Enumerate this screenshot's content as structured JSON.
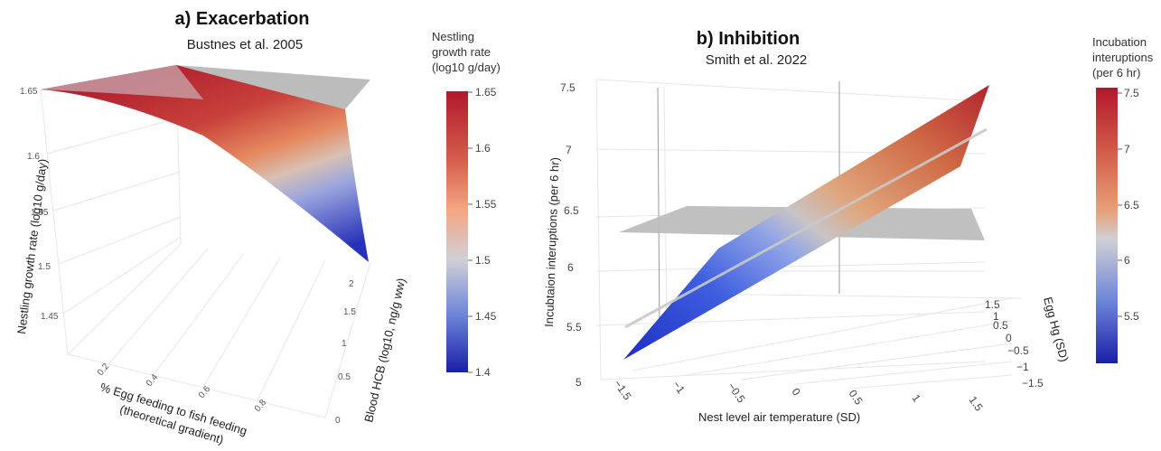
{
  "chart_data": [
    {
      "type": "surface3d",
      "title": "a) Exacerbation",
      "subtitle": "Bustnes et al. 2005",
      "xlabel": "% Egg feeding to fish feeding\n(theoretical gradient)",
      "ylabel": "Blood HCB (log10, ng/g ww)",
      "zlabel": "Nestling growth rate (log10 g/day)",
      "x_ticks": [
        "0.2",
        "0.4",
        "0.6",
        "0.8"
      ],
      "y_ticks": [
        "0",
        "0.5",
        "1",
        "1.5",
        "2"
      ],
      "z_ticks": [
        "1.45",
        "1.5",
        "1.55",
        "1.6",
        "1.65"
      ],
      "xlim": [
        0,
        1
      ],
      "ylim": [
        0,
        2.2
      ],
      "zlim": [
        1.4,
        1.65
      ],
      "surface_corners": [
        {
          "x": 0,
          "y": 0,
          "z": 1.65
        },
        {
          "x": 1,
          "y": 0,
          "z": 1.65
        },
        {
          "x": 0,
          "y": 2.2,
          "z": 1.65
        },
        {
          "x": 1,
          "y": 2.2,
          "z": 1.42
        }
      ],
      "reference_plane_z": 1.65,
      "colorbar": {
        "title": [
          "Nestling",
          "growth rate",
          "(log10 g/day)"
        ],
        "ticks": [
          "1.65",
          "1.6",
          "1.55",
          "1.5",
          "1.45",
          "1.4"
        ],
        "range": [
          1.4,
          1.65
        ]
      }
    },
    {
      "type": "surface3d",
      "title": "b) Inhibition",
      "subtitle": "Smith et al. 2022",
      "xlabel": "Nest level air temperature (SD)",
      "ylabel": "Egg Hg (SD)",
      "zlabel": "Incubtaion interuptions (per 6 hr)",
      "x_ticks": [
        "−1.5",
        "−1",
        "−0.5",
        "0",
        "0.5",
        "1",
        "1.5"
      ],
      "y_ticks": [
        "1.5",
        "1",
        "0.5",
        "0",
        "−0.5",
        "−1",
        "−1.5"
      ],
      "z_ticks": [
        "5",
        "5.5",
        "6",
        "6.5",
        "7",
        "7.5"
      ],
      "xlim": [
        -1.5,
        1.5
      ],
      "ylim": [
        -1.5,
        1.5
      ],
      "zlim": [
        5,
        7.5
      ],
      "reference_plane_z": 6.4,
      "colorbar": {
        "title": [
          "Incubation",
          "interuptions",
          "(per 6 hr)"
        ],
        "ticks": [
          "7.5",
          "7",
          "6.5",
          "6",
          "5.5"
        ],
        "range": [
          5.1,
          7.55
        ]
      }
    }
  ]
}
